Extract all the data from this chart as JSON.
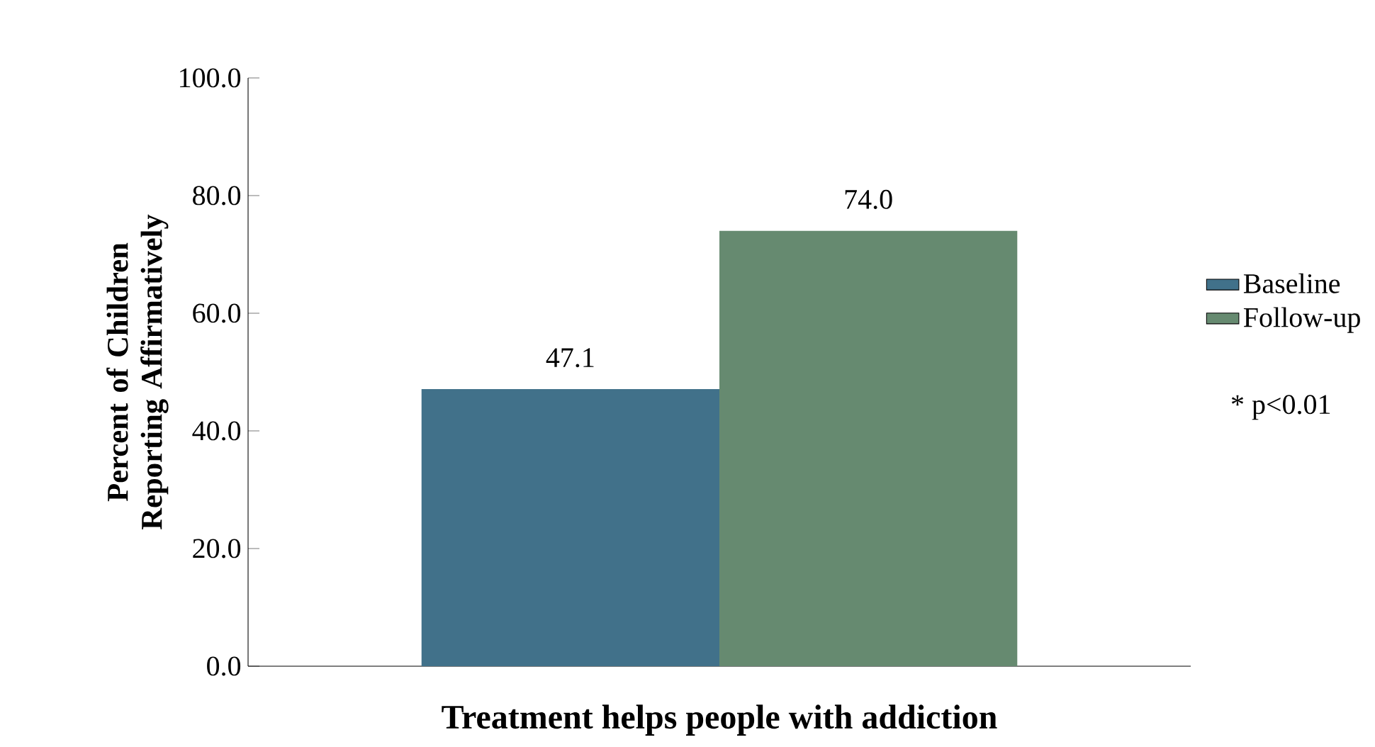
{
  "chart_data": {
    "type": "bar",
    "xlabel": "Treatment helps people with addiction",
    "ylabel": "Percent of Children Reporting Affirmatively",
    "categories": [
      null
    ],
    "series": [
      {
        "name": "Baseline",
        "color": "#41718a",
        "values": [
          47.1
        ],
        "value_labels": [
          "47.1"
        ]
      },
      {
        "name": "Follow-up",
        "color": "#668a70",
        "values": [
          74.0
        ],
        "value_labels": [
          "74.0"
        ]
      }
    ],
    "ylim": [
      0,
      100
    ],
    "yticks": [
      {
        "value": 0,
        "label": "0.0"
      },
      {
        "value": 20,
        "label": "20.0"
      },
      {
        "value": 40,
        "label": "40.0"
      },
      {
        "value": 60,
        "label": "60.0"
      },
      {
        "value": 80,
        "label": "80.0"
      },
      {
        "value": 100,
        "label": "100.0"
      }
    ],
    "legend": "right",
    "grid": false,
    "annotations": [
      "* p<0.01"
    ]
  }
}
